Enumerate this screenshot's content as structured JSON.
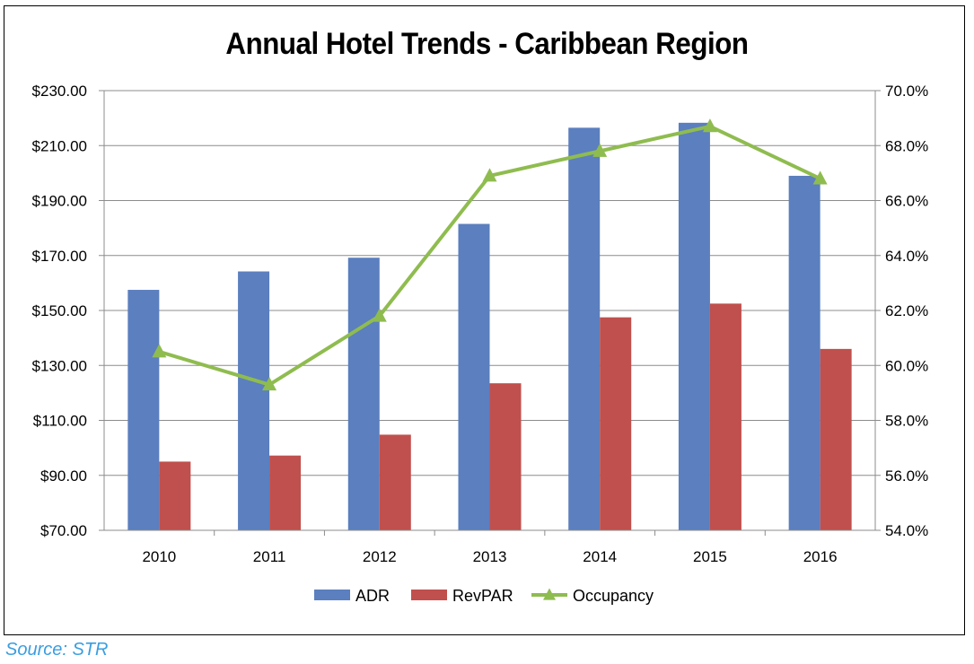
{
  "chart_data": {
    "type": "bar",
    "title": "Annual Hotel Trends - Caribbean Region",
    "categories": [
      "2010",
      "2011",
      "2012",
      "2013",
      "2014",
      "2015",
      "2016"
    ],
    "series": [
      {
        "name": "ADR",
        "type": "bar",
        "axis": "left",
        "color": "#5b7fbf",
        "values": [
          157.5,
          164.2,
          169.2,
          181.5,
          216.5,
          218.3,
          199.0
        ]
      },
      {
        "name": "RevPAR",
        "type": "bar",
        "axis": "left",
        "color": "#c0504d",
        "values": [
          95.0,
          97.2,
          104.8,
          123.5,
          147.5,
          152.5,
          136.0
        ]
      },
      {
        "name": "Occupancy",
        "type": "line",
        "axis": "right",
        "color": "#8fbc4f",
        "marker": "triangle",
        "values": [
          60.5,
          59.3,
          61.8,
          66.9,
          67.8,
          68.7,
          66.8
        ]
      }
    ],
    "y_left": {
      "range": [
        70,
        230
      ],
      "ticks": [
        "$70.00",
        "$90.00",
        "$110.00",
        "$130.00",
        "$150.00",
        "$170.00",
        "$190.00",
        "$210.00",
        "$230.00"
      ]
    },
    "y_right": {
      "range": [
        54,
        70
      ],
      "ticks": [
        "54.0%",
        "56.0%",
        "58.0%",
        "60.0%",
        "62.0%",
        "64.0%",
        "66.0%",
        "68.0%",
        "70.0%"
      ]
    },
    "grid": true,
    "legend": "bottom"
  },
  "source": "Source: STR"
}
